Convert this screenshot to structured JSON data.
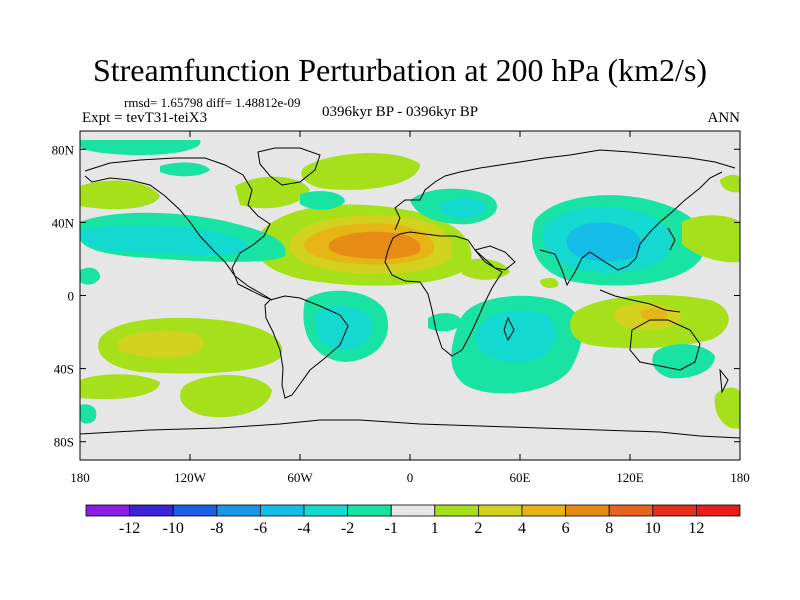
{
  "title": "Streamfunction Perturbation at 200 hPa (km2/s)",
  "stats": "rmsd= 1.65798 diff= 1.48812e-09",
  "expt": "Expt = tevT31-teiX3",
  "period": "0396kyr BP - 0396kyr BP",
  "season": "ANN",
  "chart_data": {
    "type": "contour-map",
    "title": "Streamfunction Perturbation at 200 hPa (km2/s)",
    "units": "km2/s",
    "xlim": [
      -180,
      180
    ],
    "ylim": [
      -90,
      90
    ],
    "x_ticks": [
      {
        "value": -180,
        "label": "180"
      },
      {
        "value": -120,
        "label": "120W"
      },
      {
        "value": -60,
        "label": "60W"
      },
      {
        "value": 0,
        "label": "0"
      },
      {
        "value": 60,
        "label": "60E"
      },
      {
        "value": 120,
        "label": "120E"
      },
      {
        "value": 180,
        "label": "180"
      }
    ],
    "y_ticks": [
      {
        "value": 80,
        "label": "80N"
      },
      {
        "value": 40,
        "label": "40N"
      },
      {
        "value": 0,
        "label": "0"
      },
      {
        "value": -40,
        "label": "40S"
      },
      {
        "value": -80,
        "label": "80S"
      }
    ],
    "colorbar": {
      "labels": [
        "-12",
        "-10",
        "-8",
        "-6",
        "-4",
        "-2",
        "-1",
        "1",
        "2",
        "4",
        "6",
        "8",
        "10",
        "12"
      ],
      "colors": [
        "#8a1de6",
        "#3c24d6",
        "#1f5fe8",
        "#1996e6",
        "#14bde6",
        "#14d9d0",
        "#19e3a2",
        "#e6e6e6",
        "#a6e01a",
        "#d2d21e",
        "#e6b414",
        "#e68c14",
        "#e6641e",
        "#e62d1e",
        "#e61e1e"
      ]
    },
    "anomalies": [
      {
        "lon": -20,
        "lat": 28,
        "peak": 7,
        "note": "North Atlantic / North Africa positive"
      },
      {
        "lon": -145,
        "lat": -28,
        "peak": 2.5
      },
      {
        "lon": -80,
        "lat": 70,
        "peak": 1
      },
      {
        "lon": 150,
        "lat": -12,
        "peak": 4
      },
      {
        "lon": 100,
        "lat": 30,
        "peak": -4
      },
      {
        "lon": 50,
        "lat": -22,
        "peak": -3.5
      },
      {
        "lon": -40,
        "lat": -22,
        "peak": -3
      }
    ]
  }
}
